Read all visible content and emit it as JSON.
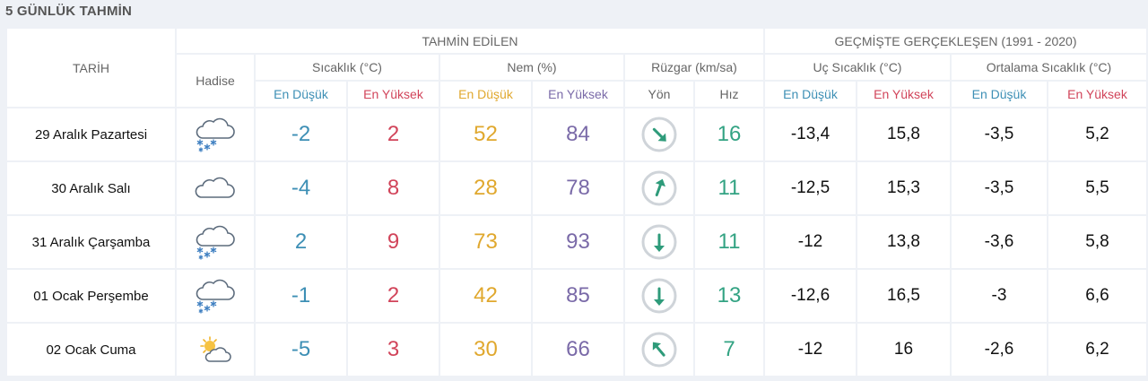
{
  "title": "5 GÜNLÜK TAHMİN",
  "headers": {
    "tarih": "TARİH",
    "tahmin": "TAHMİN EDİLEN",
    "gecmis": "GEÇMİŞTE GERÇEKLEŞEN (1991 - 2020)",
    "hadise": "Hadise",
    "sicaklik": "Sıcaklık (°C)",
    "nem": "Nem (%)",
    "ruzgar": "Rüzgar (km/sa)",
    "uc": "Uç Sıcaklık (°C)",
    "ortalama": "Ortalama Sıcaklık (°C)",
    "en_dusuk": "En Düşük",
    "en_yuksek": "En Yüksek",
    "yon": "Yön",
    "hiz": "Hız"
  },
  "rows": [
    {
      "date": "29 Aralık Pazartesi",
      "icon": "cloud-snow-icon",
      "temp_low": "-2",
      "temp_high": "2",
      "hum_low": "52",
      "hum_high": "84",
      "wind_dir": "arrow-southeast",
      "wind_angle": 135,
      "wind_speed": "16",
      "ext_low": "-13,4",
      "ext_high": "15,8",
      "avg_low": "-3,5",
      "avg_high": "5,2"
    },
    {
      "date": "30 Aralık Salı",
      "icon": "cloud-icon",
      "temp_low": "-4",
      "temp_high": "8",
      "hum_low": "28",
      "hum_high": "78",
      "wind_dir": "arrow-northeast",
      "wind_angle": 20,
      "wind_speed": "11",
      "ext_low": "-12,5",
      "ext_high": "15,3",
      "avg_low": "-3,5",
      "avg_high": "5,5"
    },
    {
      "date": "31 Aralık Çarşamba",
      "icon": "cloud-snow-icon",
      "temp_low": "2",
      "temp_high": "9",
      "hum_low": "73",
      "hum_high": "93",
      "wind_dir": "arrow-south",
      "wind_angle": 180,
      "wind_speed": "11",
      "ext_low": "-12",
      "ext_high": "13,8",
      "avg_low": "-3,6",
      "avg_high": "5,8"
    },
    {
      "date": "01 Ocak Perşembe",
      "icon": "cloud-snow-icon",
      "temp_low": "-1",
      "temp_high": "2",
      "hum_low": "42",
      "hum_high": "85",
      "wind_dir": "arrow-south",
      "wind_angle": 180,
      "wind_speed": "13",
      "ext_low": "-12,6",
      "ext_high": "16,5",
      "avg_low": "-3",
      "avg_high": "6,6"
    },
    {
      "date": "02 Ocak Cuma",
      "icon": "sun-cloud-icon",
      "temp_low": "-5",
      "temp_high": "3",
      "hum_low": "30",
      "hum_high": "66",
      "wind_dir": "arrow-northwest",
      "wind_angle": 320,
      "wind_speed": "7",
      "ext_low": "-12",
      "ext_high": "16",
      "avg_low": "-2,6",
      "avg_high": "6,2"
    }
  ],
  "colors": {
    "low": "#3d8fb5",
    "high": "#d1445a",
    "hum_low": "#e0a82e",
    "hum_high": "#7a6aa8",
    "wind_speed": "#33a383",
    "wind_arrow": "#2e9b7a"
  }
}
